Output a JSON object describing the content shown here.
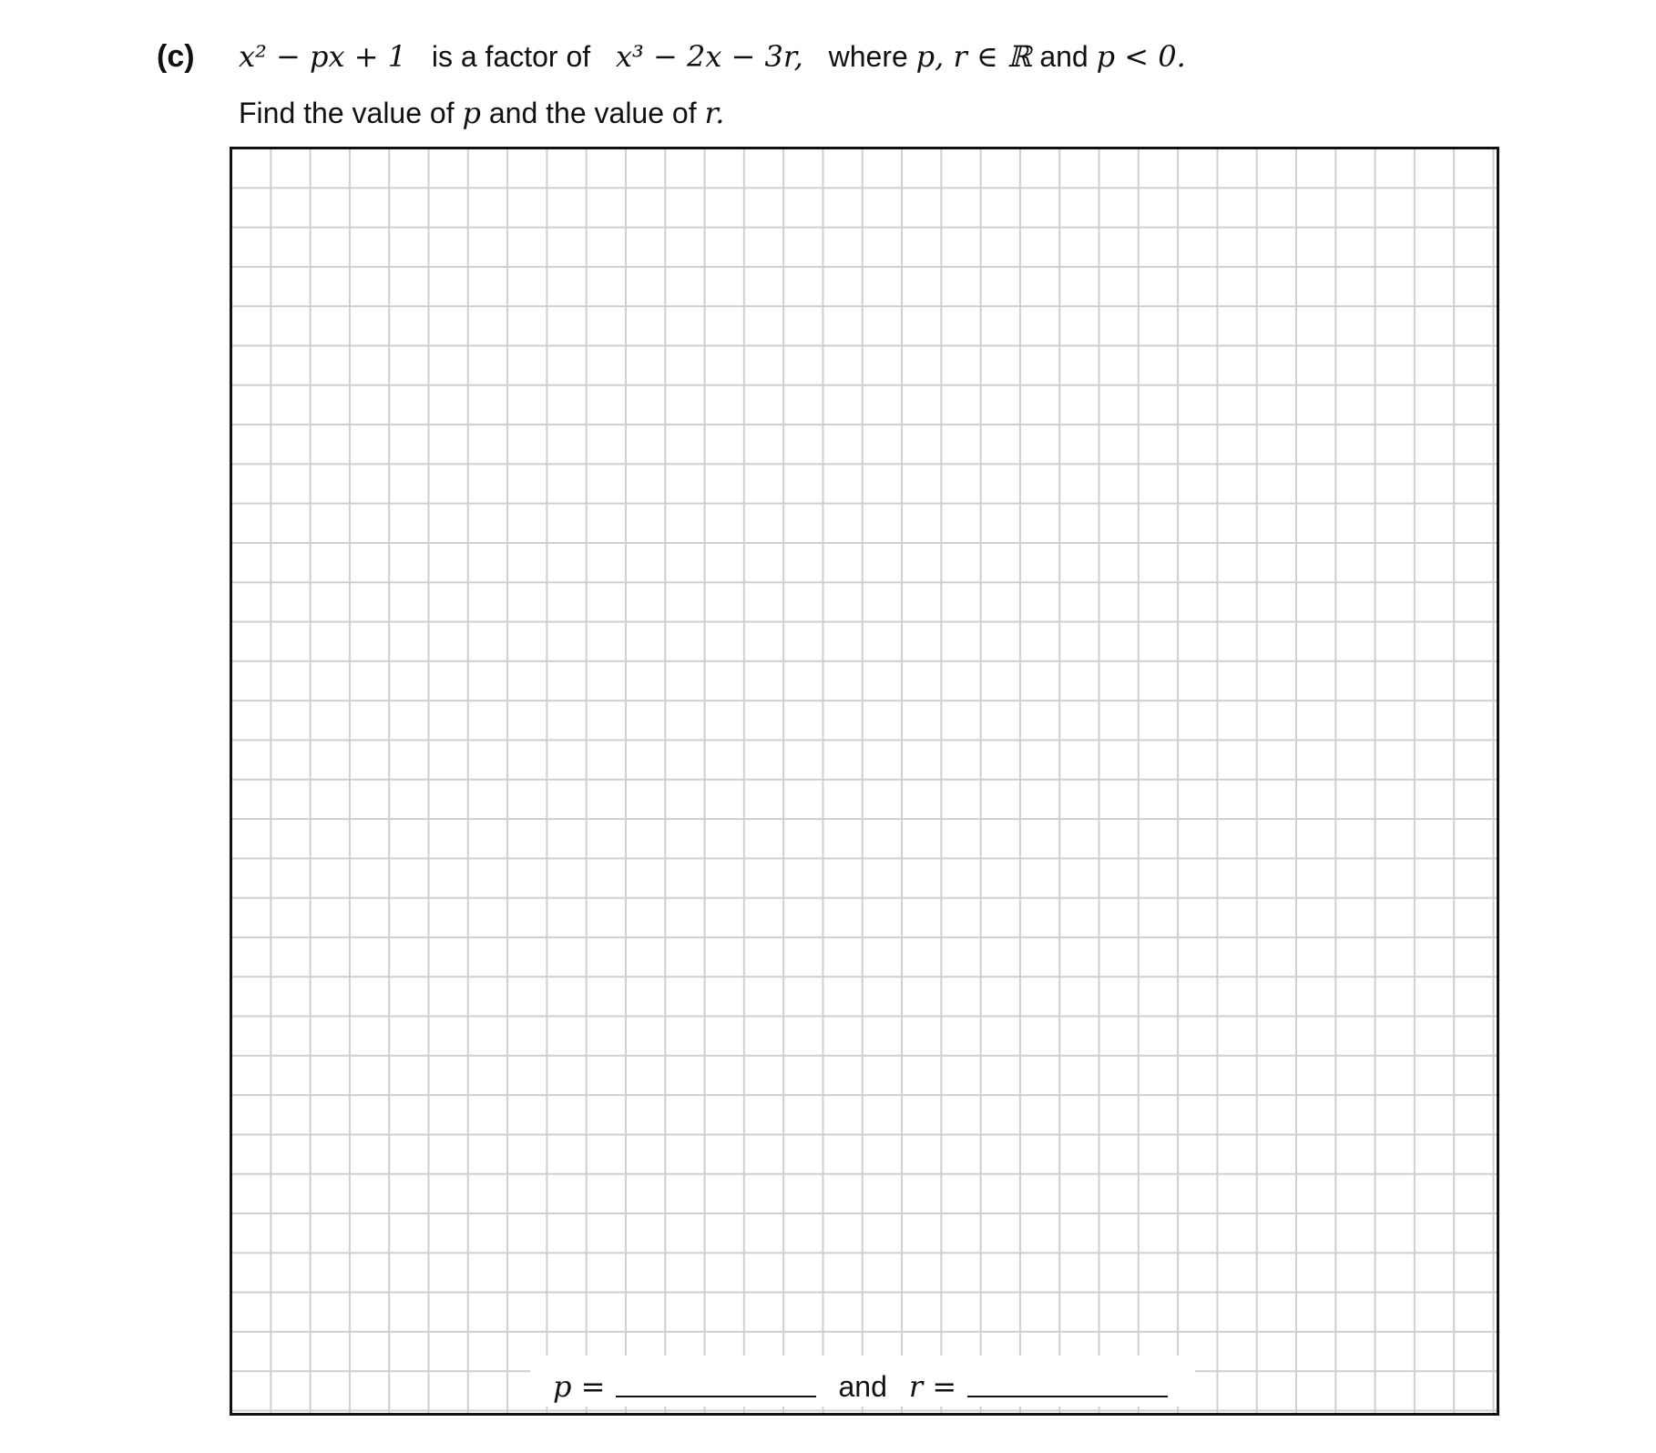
{
  "question": {
    "part_label": "(c)",
    "expr_factor": "x² − px + 1",
    "is_factor_of_text": "is a factor of",
    "expr_polynomial": "x³ − 2x − 3r,",
    "where_text": "where",
    "condition_vars": "p, r ∈ ℝ",
    "and_text": "and",
    "condition_p": "p < 0.",
    "instruction_prefix": "Find the value of",
    "instruction_var_p": "p",
    "instruction_mid": "and the value of",
    "instruction_var_r": "r."
  },
  "answer": {
    "p_label": "p =",
    "and_label": "and",
    "r_label": "r ="
  }
}
